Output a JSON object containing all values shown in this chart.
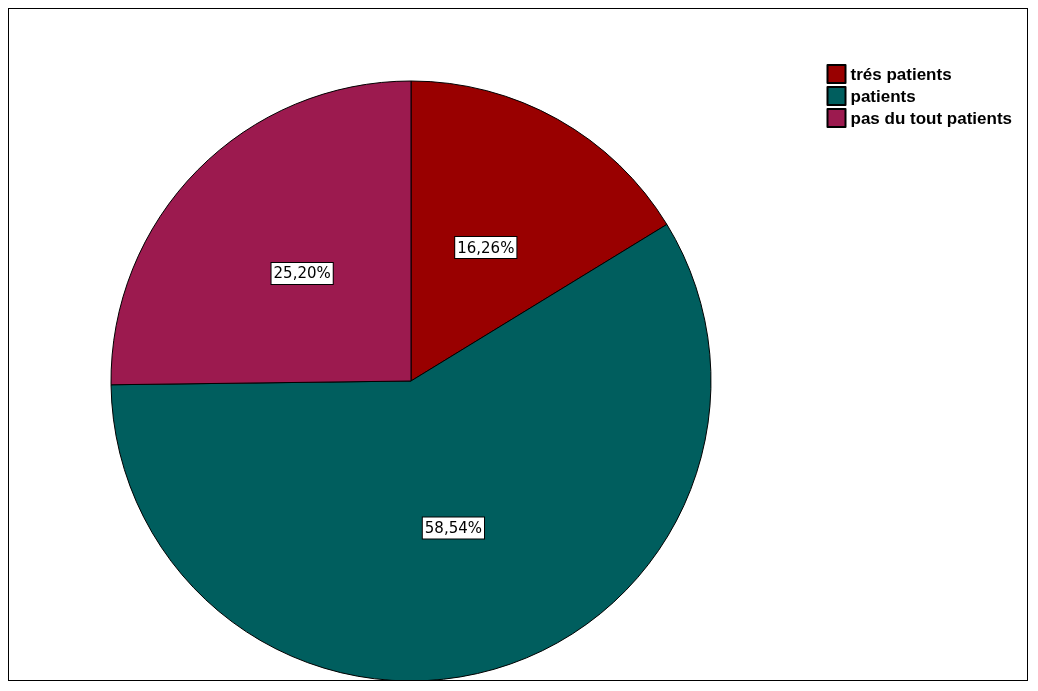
{
  "chart_data": {
    "type": "pie",
    "categories": [
      "trés patients",
      "patients",
      "pas du tout patients"
    ],
    "values": [
      16.26,
      58.54,
      25.2
    ],
    "colors": [
      "#990000",
      "#005e5e",
      "#9c1a4f"
    ],
    "value_labels": [
      "16,26%",
      "58,54%",
      "25,20%"
    ],
    "legend": "top right"
  }
}
